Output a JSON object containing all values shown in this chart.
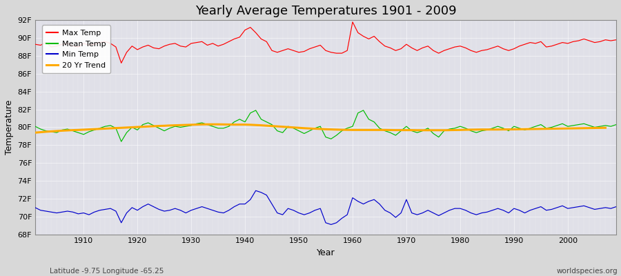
{
  "title": "Yearly Average Temperatures 1901 - 2009",
  "xlabel": "Year",
  "ylabel": "Temperature",
  "bottom_left": "Latitude -9.75 Longitude -65.25",
  "bottom_right": "worldspecies.org",
  "years": [
    1901,
    1902,
    1903,
    1904,
    1905,
    1906,
    1907,
    1908,
    1909,
    1910,
    1911,
    1912,
    1913,
    1914,
    1915,
    1916,
    1917,
    1918,
    1919,
    1920,
    1921,
    1922,
    1923,
    1924,
    1925,
    1926,
    1927,
    1928,
    1929,
    1930,
    1931,
    1932,
    1933,
    1934,
    1935,
    1936,
    1937,
    1938,
    1939,
    1940,
    1941,
    1942,
    1943,
    1944,
    1945,
    1946,
    1947,
    1948,
    1949,
    1950,
    1951,
    1952,
    1953,
    1954,
    1955,
    1956,
    1957,
    1958,
    1959,
    1960,
    1961,
    1962,
    1963,
    1964,
    1965,
    1966,
    1967,
    1968,
    1969,
    1970,
    1971,
    1972,
    1973,
    1974,
    1975,
    1976,
    1977,
    1978,
    1979,
    1980,
    1981,
    1982,
    1983,
    1984,
    1985,
    1986,
    1987,
    1988,
    1989,
    1990,
    1991,
    1992,
    1993,
    1994,
    1995,
    1996,
    1997,
    1998,
    1999,
    2000,
    2001,
    2002,
    2003,
    2004,
    2005,
    2006,
    2007,
    2008,
    2009
  ],
  "max_temp": [
    89.3,
    89.2,
    89.5,
    89.0,
    89.1,
    89.3,
    89.4,
    89.1,
    89.0,
    89.4,
    89.2,
    89.3,
    89.5,
    89.6,
    89.4,
    89.0,
    87.2,
    88.4,
    89.1,
    88.7,
    89.0,
    89.2,
    88.9,
    88.8,
    89.1,
    89.3,
    89.4,
    89.1,
    89.0,
    89.4,
    89.5,
    89.6,
    89.2,
    89.4,
    89.1,
    89.3,
    89.6,
    89.9,
    90.1,
    90.9,
    91.2,
    90.6,
    89.9,
    89.6,
    88.6,
    88.4,
    88.6,
    88.8,
    88.6,
    88.4,
    88.5,
    88.8,
    89.0,
    89.2,
    88.6,
    88.4,
    88.3,
    88.3,
    88.6,
    91.8,
    90.6,
    90.2,
    89.9,
    90.2,
    89.6,
    89.1,
    88.9,
    88.6,
    88.8,
    89.3,
    88.9,
    88.6,
    88.9,
    89.1,
    88.6,
    88.3,
    88.6,
    88.8,
    89.0,
    89.1,
    88.9,
    88.6,
    88.4,
    88.6,
    88.7,
    88.9,
    89.1,
    88.8,
    88.6,
    88.8,
    89.1,
    89.3,
    89.5,
    89.4,
    89.6,
    89.0,
    89.1,
    89.3,
    89.5,
    89.4,
    89.6,
    89.7,
    89.9,
    89.7,
    89.5,
    89.6,
    89.8,
    89.7,
    89.8
  ],
  "mean_temp": [
    80.1,
    79.8,
    79.6,
    79.5,
    79.4,
    79.7,
    79.8,
    79.6,
    79.4,
    79.2,
    79.5,
    79.7,
    79.9,
    80.1,
    80.2,
    79.9,
    78.4,
    79.4,
    80.0,
    79.7,
    80.3,
    80.5,
    80.2,
    79.9,
    79.6,
    79.9,
    80.1,
    80.0,
    80.1,
    80.2,
    80.4,
    80.5,
    80.3,
    80.1,
    79.9,
    79.9,
    80.1,
    80.6,
    80.9,
    80.6,
    81.6,
    81.9,
    80.9,
    80.6,
    80.3,
    79.6,
    79.4,
    80.1,
    79.9,
    79.6,
    79.3,
    79.6,
    79.9,
    80.1,
    78.9,
    78.7,
    79.1,
    79.6,
    79.9,
    80.1,
    81.6,
    81.9,
    80.9,
    80.6,
    79.9,
    79.6,
    79.4,
    79.1,
    79.6,
    80.1,
    79.6,
    79.4,
    79.6,
    79.9,
    79.3,
    78.9,
    79.6,
    79.8,
    79.9,
    80.1,
    79.9,
    79.6,
    79.4,
    79.6,
    79.7,
    79.9,
    80.1,
    79.9,
    79.6,
    80.1,
    79.9,
    79.7,
    79.9,
    80.1,
    80.3,
    79.9,
    80.0,
    80.2,
    80.4,
    80.1,
    80.2,
    80.3,
    80.4,
    80.2,
    80.0,
    80.1,
    80.2,
    80.1,
    80.3
  ],
  "min_temp": [
    71.0,
    70.7,
    70.6,
    70.5,
    70.4,
    70.5,
    70.6,
    70.5,
    70.3,
    70.4,
    70.2,
    70.5,
    70.7,
    70.8,
    70.9,
    70.6,
    69.3,
    70.4,
    71.0,
    70.7,
    71.1,
    71.4,
    71.1,
    70.8,
    70.6,
    70.7,
    70.9,
    70.7,
    70.4,
    70.7,
    70.9,
    71.1,
    70.9,
    70.7,
    70.5,
    70.4,
    70.7,
    71.1,
    71.4,
    71.4,
    71.9,
    72.9,
    72.7,
    72.4,
    71.4,
    70.4,
    70.2,
    70.9,
    70.7,
    70.4,
    70.2,
    70.4,
    70.7,
    70.9,
    69.3,
    69.1,
    69.3,
    69.8,
    70.2,
    72.1,
    71.7,
    71.4,
    71.7,
    71.9,
    71.4,
    70.7,
    70.4,
    69.9,
    70.4,
    71.9,
    70.4,
    70.2,
    70.4,
    70.7,
    70.4,
    70.1,
    70.4,
    70.7,
    70.9,
    70.9,
    70.7,
    70.4,
    70.2,
    70.4,
    70.5,
    70.7,
    70.9,
    70.7,
    70.4,
    70.9,
    70.7,
    70.4,
    70.7,
    70.9,
    71.1,
    70.7,
    70.8,
    71.0,
    71.2,
    70.9,
    71.0,
    71.1,
    71.2,
    71.0,
    70.8,
    70.9,
    71.0,
    70.9,
    71.1
  ],
  "trend": [
    79.4,
    79.45,
    79.5,
    79.54,
    79.58,
    79.62,
    79.65,
    79.68,
    79.7,
    79.73,
    79.76,
    79.79,
    79.82,
    79.85,
    79.88,
    79.91,
    79.94,
    79.97,
    80.0,
    80.03,
    80.06,
    80.09,
    80.12,
    80.15,
    80.17,
    80.2,
    80.22,
    80.24,
    80.26,
    80.28,
    80.3,
    80.32,
    80.33,
    80.33,
    80.33,
    80.32,
    80.31,
    80.3,
    80.3,
    80.3,
    80.28,
    80.25,
    80.22,
    80.18,
    80.14,
    80.1,
    80.06,
    80.02,
    79.98,
    79.94,
    79.9,
    79.87,
    79.84,
    79.81,
    79.78,
    79.76,
    79.74,
    79.72,
    79.71,
    79.7,
    79.7,
    79.7,
    79.7,
    79.7,
    79.7,
    79.7,
    79.69,
    79.68,
    79.68,
    79.68,
    79.68,
    79.67,
    79.67,
    79.67,
    79.67,
    79.67,
    79.67,
    79.68,
    79.69,
    79.7,
    79.72,
    79.73,
    79.74,
    79.75,
    79.75,
    79.75,
    79.75,
    79.76,
    79.76,
    79.77,
    79.78,
    79.79,
    79.8,
    79.81,
    79.82,
    79.83,
    79.84,
    79.85,
    79.86,
    79.87,
    79.88,
    79.89,
    79.9,
    79.91,
    79.92,
    79.93,
    79.94,
    null,
    null
  ],
  "ylim": [
    68,
    92
  ],
  "yticks": [
    68,
    70,
    72,
    74,
    76,
    78,
    80,
    82,
    84,
    86,
    88,
    90,
    92
  ],
  "ytick_labels": [
    "68F",
    "70F",
    "72F",
    "74F",
    "76F",
    "78F",
    "80F",
    "82F",
    "84F",
    "86F",
    "88F",
    "90F",
    "92F"
  ],
  "xticks": [
    1910,
    1920,
    1930,
    1940,
    1950,
    1960,
    1970,
    1980,
    1990,
    2000
  ],
  "fig_bg_color": "#d8d8d8",
  "plot_bg_color": "#e0e0e8",
  "grid_color": "#c8c8d0",
  "grid_color_minor": "#d4d4dc",
  "max_color": "#ff0000",
  "mean_color": "#00bb00",
  "min_color": "#0000cc",
  "trend_color": "#ffaa00",
  "title_fontsize": 13,
  "axis_label_fontsize": 9,
  "tick_fontsize": 8,
  "legend_labels": [
    "Max Temp",
    "Mean Temp",
    "Min Temp",
    "20 Yr Trend"
  ]
}
